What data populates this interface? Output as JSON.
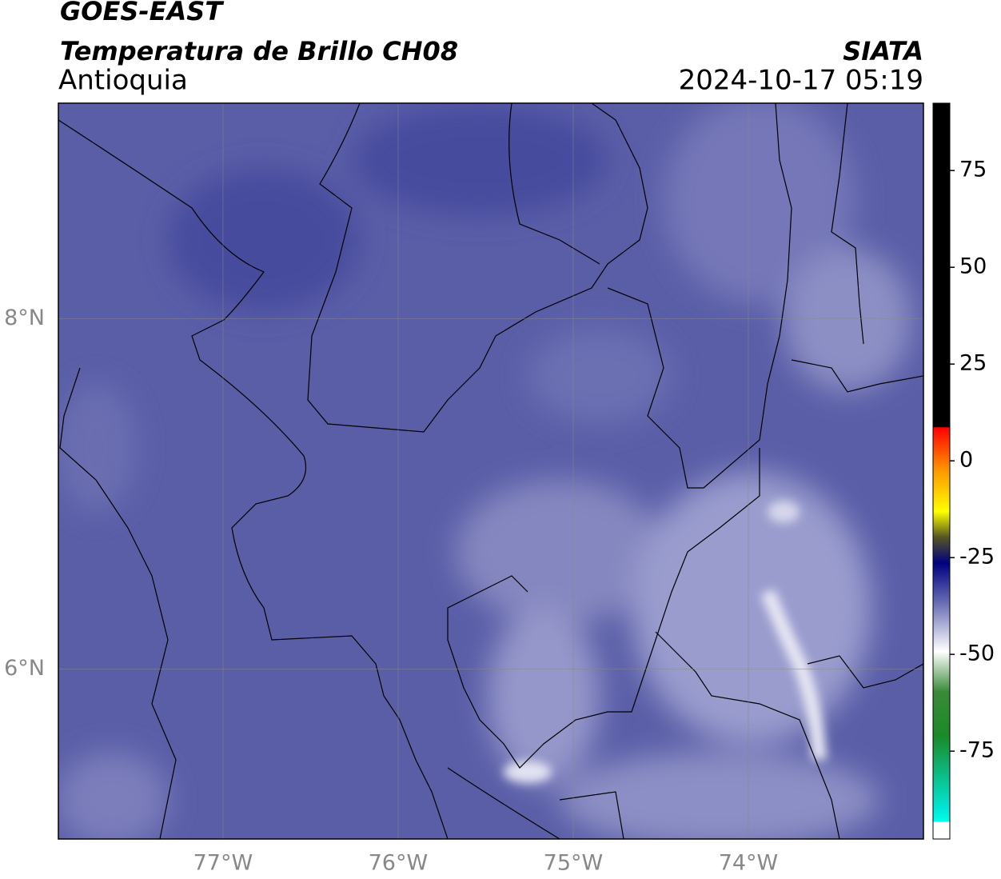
{
  "header": {
    "title": "GOES-EAST",
    "subtitle": "Temperatura de Brillo CH08",
    "region": "Antioquia",
    "source": "SIATA",
    "datetime": "2024-10-17 05:19"
  },
  "map": {
    "lonlim": [
      -77.94,
      -73.0
    ],
    "latlim": [
      5.03,
      9.23
    ],
    "lon_ticks": [
      {
        "value": -77,
        "label": "77°W"
      },
      {
        "value": -76,
        "label": "76°W"
      },
      {
        "value": -75,
        "label": "75°W"
      },
      {
        "value": -74,
        "label": "74°W"
      }
    ],
    "lat_ticks": [
      {
        "value": 8,
        "label": "8°N"
      },
      {
        "value": 6,
        "label": "6°N"
      }
    ],
    "grid": true
  },
  "colorbar": {
    "lim": [
      -97.7,
      92.4
    ],
    "ticks": [
      75,
      50,
      25,
      0,
      -25,
      -50,
      -75
    ]
  }
}
